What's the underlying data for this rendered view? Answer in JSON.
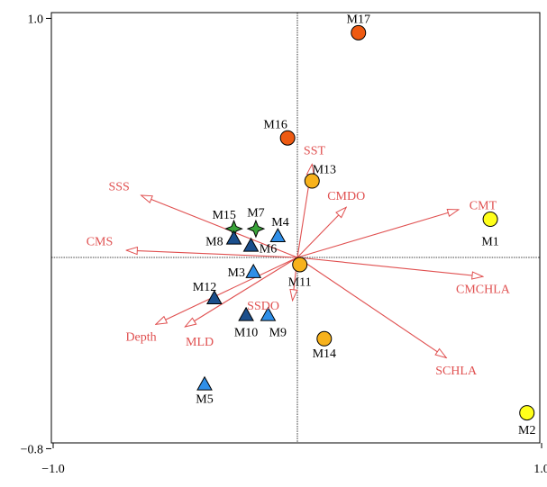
{
  "chart_data": {
    "type": "scatter",
    "title": "",
    "xlabel": "",
    "ylabel": "",
    "xlim": [
      -1.0,
      1.0
    ],
    "ylim": [
      -0.8,
      1.0
    ],
    "x_tick_labels": [
      {
        "value": -1.0,
        "label": "−1.0"
      },
      {
        "value": 1.0,
        "label": "1.0"
      }
    ],
    "y_tick_labels": [
      {
        "value": 1.0,
        "label": "1.0"
      },
      {
        "value": -0.8,
        "label": "−0.8"
      }
    ],
    "grid": false,
    "legend": "none",
    "colors": {
      "arrow": "#e05050",
      "label_text": "#e05050",
      "yellow": "#ffff1a",
      "orange": "#f7b21c",
      "red_orange": "#ee5a12",
      "light_blue": "#2f8fe8",
      "dark_blue": "#1b4f8c",
      "green": "#39a339"
    },
    "vectors": [
      {
        "name": "SST",
        "x": 0.06,
        "y": 0.39,
        "label_x": 0.07,
        "label_y": 0.45
      },
      {
        "name": "CMDO",
        "x": 0.2,
        "y": 0.21,
        "label_x": 0.2,
        "label_y": 0.26
      },
      {
        "name": "CMT",
        "x": 0.66,
        "y": 0.2,
        "label_x": 0.76,
        "label_y": 0.22
      },
      {
        "name": "CMCHLA",
        "x": 0.76,
        "y": -0.08,
        "label_x": 0.76,
        "label_y": -0.13
      },
      {
        "name": "SCHLA",
        "x": 0.61,
        "y": -0.42,
        "label_x": 0.65,
        "label_y": -0.47
      },
      {
        "name": "SSS",
        "x": -0.64,
        "y": 0.26,
        "label_x": -0.73,
        "label_y": 0.3
      },
      {
        "name": "CMS",
        "x": -0.7,
        "y": 0.03,
        "label_x": -0.81,
        "label_y": 0.07
      },
      {
        "name": "SSDO",
        "x": -0.02,
        "y": -0.18,
        "label_x": -0.14,
        "label_y": -0.2
      },
      {
        "name": "MLD",
        "x": -0.46,
        "y": -0.29,
        "label_x": -0.4,
        "label_y": -0.35
      },
      {
        "name": "Depth",
        "x": -0.58,
        "y": -0.28,
        "label_x": -0.64,
        "label_y": -0.33
      }
    ],
    "points": [
      {
        "name": "M1",
        "x": 0.79,
        "y": 0.16,
        "shape": "circle",
        "color": "yellow",
        "label_x": 0.79,
        "label_y": 0.07
      },
      {
        "name": "M2",
        "x": 0.94,
        "y": -0.65,
        "shape": "circle",
        "color": "yellow",
        "label_x": 0.94,
        "label_y": -0.72
      },
      {
        "name": "M17",
        "x": 0.25,
        "y": 0.94,
        "shape": "circle",
        "color": "red_orange",
        "label_x": 0.25,
        "label_y": 1.0
      },
      {
        "name": "M16",
        "x": -0.04,
        "y": 0.5,
        "shape": "circle",
        "color": "red_orange",
        "label_x": -0.09,
        "label_y": 0.56
      },
      {
        "name": "M13",
        "x": 0.06,
        "y": 0.32,
        "shape": "circle",
        "color": "orange",
        "label_x": 0.11,
        "label_y": 0.37
      },
      {
        "name": "M11",
        "x": 0.01,
        "y": -0.03,
        "shape": "circle",
        "color": "orange",
        "label_x": 0.01,
        "label_y": -0.1
      },
      {
        "name": "M14",
        "x": 0.11,
        "y": -0.34,
        "shape": "circle",
        "color": "orange",
        "label_x": 0.11,
        "label_y": -0.4
      },
      {
        "name": "M15",
        "x": -0.26,
        "y": 0.12,
        "shape": "star",
        "color": "green",
        "label_x": -0.3,
        "label_y": 0.18
      },
      {
        "name": "M7",
        "x": -0.17,
        "y": 0.12,
        "shape": "star",
        "color": "green",
        "label_x": -0.17,
        "label_y": 0.19
      },
      {
        "name": "M4",
        "x": -0.08,
        "y": 0.09,
        "shape": "triangle",
        "color": "light_blue",
        "label_x": -0.07,
        "label_y": 0.15
      },
      {
        "name": "M8",
        "x": -0.26,
        "y": 0.08,
        "shape": "triangle",
        "color": "dark_blue",
        "label_x": -0.34,
        "label_y": 0.07
      },
      {
        "name": "M6",
        "x": -0.19,
        "y": 0.05,
        "shape": "triangle",
        "color": "dark_blue",
        "label_x": -0.12,
        "label_y": 0.04
      },
      {
        "name": "M3",
        "x": -0.18,
        "y": -0.06,
        "shape": "triangle",
        "color": "light_blue",
        "label_x": -0.25,
        "label_y": -0.06
      },
      {
        "name": "M12",
        "x": -0.34,
        "y": -0.17,
        "shape": "triangle",
        "color": "dark_blue",
        "label_x": -0.38,
        "label_y": -0.12
      },
      {
        "name": "M10",
        "x": -0.21,
        "y": -0.24,
        "shape": "triangle",
        "color": "dark_blue",
        "label_x": -0.21,
        "label_y": -0.31
      },
      {
        "name": "M9",
        "x": -0.12,
        "y": -0.24,
        "shape": "triangle",
        "color": "light_blue",
        "label_x": -0.08,
        "label_y": -0.31
      },
      {
        "name": "M5",
        "x": -0.38,
        "y": -0.53,
        "shape": "triangle",
        "color": "light_blue",
        "label_x": -0.38,
        "label_y": -0.59
      }
    ]
  }
}
